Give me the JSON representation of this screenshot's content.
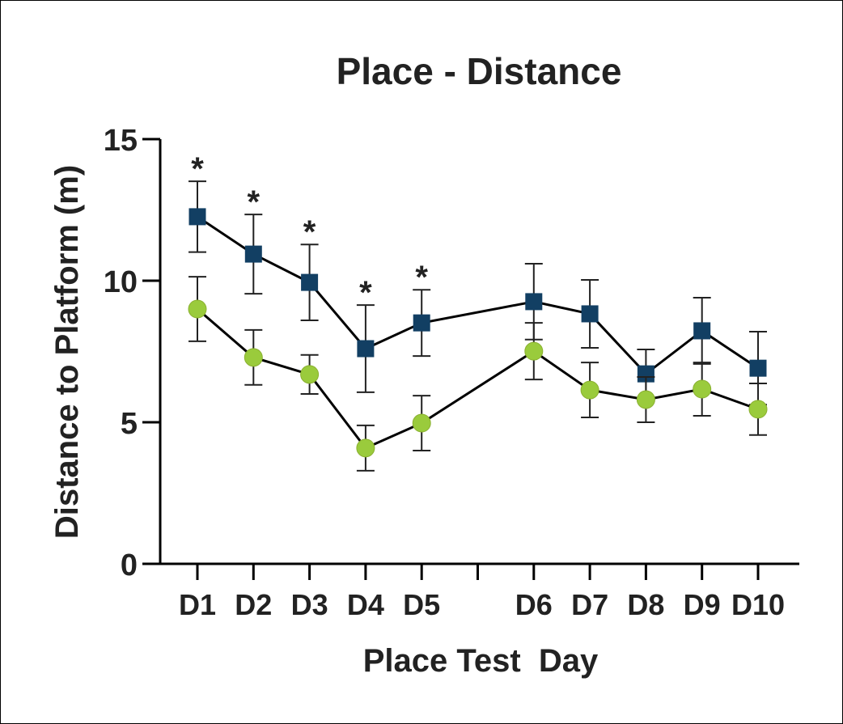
{
  "chart_data": {
    "type": "line",
    "title": "Place - Distance",
    "xlabel": "Place Test  Day",
    "ylabel": "Distance to Platform (m)",
    "categories": [
      "D1",
      "D2",
      "D3",
      "D4",
      "D5",
      "D6",
      "D7",
      "D8",
      "D9",
      "D10"
    ],
    "ylim": [
      0,
      15
    ],
    "yticks": [
      0,
      5,
      10,
      15
    ],
    "grid": false,
    "series": [
      {
        "marker": "square",
        "color": "#123f63",
        "values": [
          12.26,
          10.94,
          9.94,
          7.6,
          8.51,
          9.26,
          8.83,
          6.71,
          8.23,
          6.91
        ],
        "errors": [
          1.25,
          1.4,
          1.34,
          1.54,
          1.17,
          1.34,
          1.2,
          0.86,
          1.17,
          1.29
        ]
      },
      {
        "marker": "circle",
        "color": "#9acb3c",
        "values": [
          9.0,
          7.29,
          6.69,
          4.09,
          4.97,
          7.51,
          6.14,
          5.8,
          6.17,
          5.46
        ],
        "errors": [
          1.14,
          0.97,
          0.69,
          0.8,
          0.97,
          1.0,
          0.97,
          0.8,
          0.94,
          0.91
        ]
      }
    ],
    "annotations": [
      {
        "category": "D1",
        "text": "*"
      },
      {
        "category": "D2",
        "text": "*"
      },
      {
        "category": "D3",
        "text": "*"
      },
      {
        "category": "D4",
        "text": "*"
      },
      {
        "category": "D5",
        "text": "*"
      }
    ]
  }
}
